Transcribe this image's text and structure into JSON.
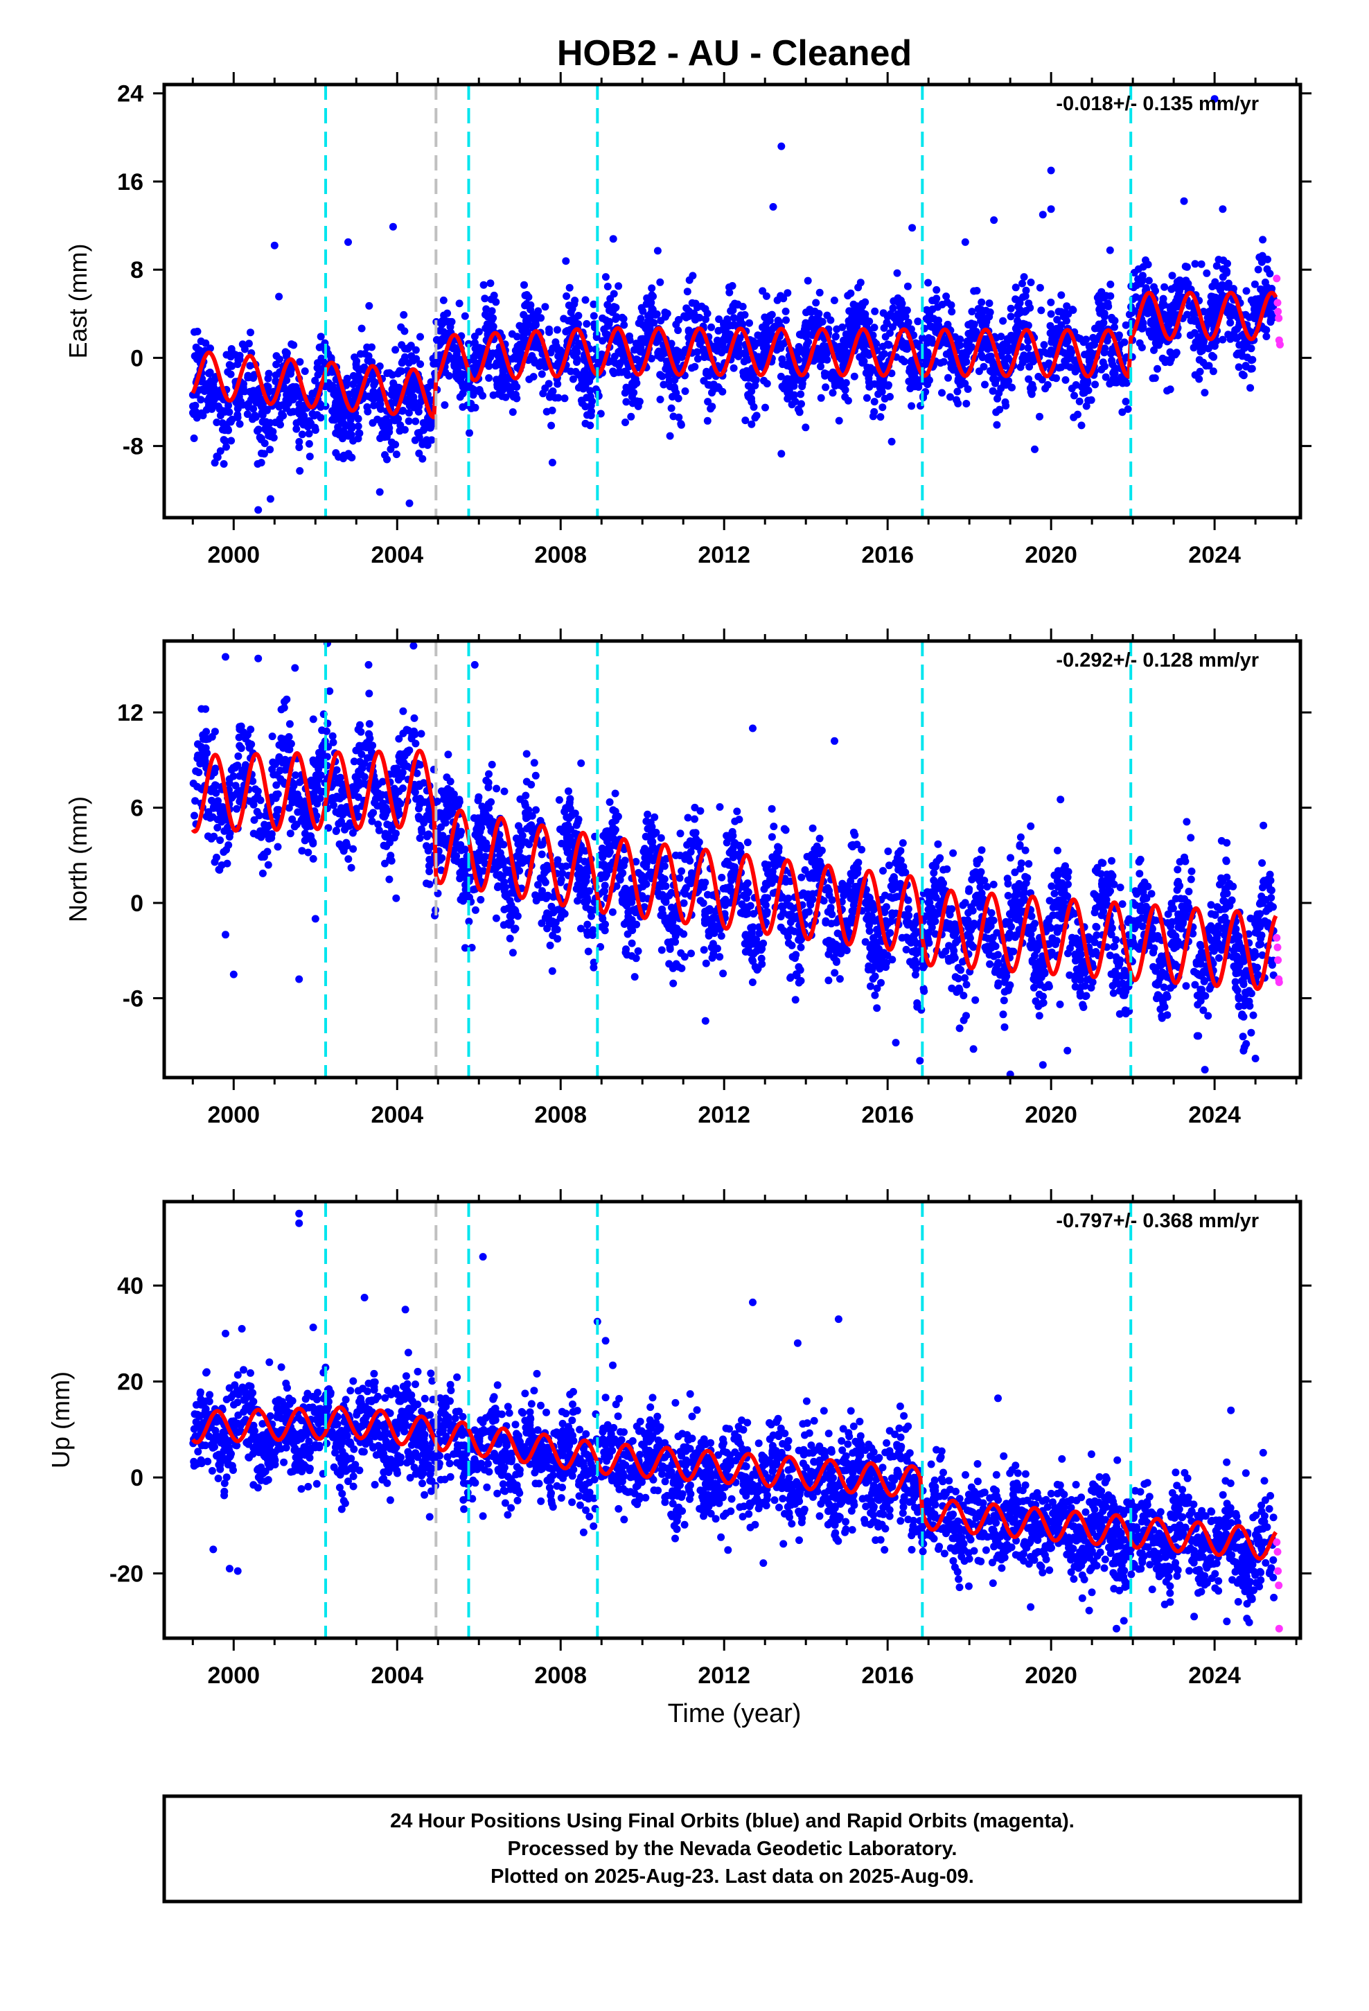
{
  "title": "HOB2  - AU - Cleaned",
  "xlabel": "Time (year)",
  "footer": [
    "24 Hour Positions Using Final Orbits (blue) and Rapid Orbits (magenta).",
    "Processed by the Nevada Geodetic Laboratory.",
    "Plotted on 2025-Aug-23. Last data on 2025-Aug-09."
  ],
  "colors": {
    "final_orbits": "#0000ff",
    "rapid_orbits": "#ff33ff",
    "model": "#ff0000",
    "equipment_change": "#00e5ee",
    "earthquake": "#c0c0c0"
  },
  "chart_data": [
    {
      "type": "scatter",
      "component": "east",
      "ylabel": "East (mm)",
      "rate_label": "-0.018+/- 0.135 mm/yr",
      "xlim": [
        1998.3,
        2026.1
      ],
      "ylim": [
        -14.5,
        24.8
      ],
      "xticks": [
        2000,
        2004,
        2008,
        2012,
        2016,
        2020,
        2024
      ],
      "xtick_labels": [
        "2000",
        "2004",
        "2008",
        "2012",
        "2016",
        "2020",
        "2024"
      ],
      "yticks": [
        -8,
        0,
        8,
        16,
        24
      ],
      "ytick_labels": [
        "-8",
        "0",
        "8",
        "16",
        "24"
      ],
      "equipment_changes": [
        2002.25,
        2005.75,
        2008.9,
        2016.85,
        2021.95
      ],
      "earthquakes": [
        2004.95
      ],
      "series": [
        {
          "name": "Final Orbits (blue)",
          "color": "#0000ff",
          "x_range": [
            1999.0,
            2025.45
          ],
          "trend_knots": [
            [
              1999.0,
              -3.5
            ],
            [
              2004.9,
              -3.6
            ],
            [
              2004.95,
              -0.4
            ],
            [
              2010,
              0.8
            ],
            [
              2021.9,
              0.7
            ],
            [
              2021.95,
              3.8
            ],
            [
              2025.45,
              3.8
            ]
          ],
          "annual_amplitude": 2.0,
          "noise_sd": 2.0,
          "n": 3200,
          "outliers": [
            [
              2013.4,
              19.2
            ],
            [
              2013.2,
              13.7
            ],
            [
              2020.0,
              17.0
            ],
            [
              2020.0,
              13.5
            ],
            [
              2019.8,
              13.0
            ],
            [
              2024.0,
              23.5
            ],
            [
              2024.2,
              13.5
            ],
            [
              2003.9,
              11.9
            ],
            [
              2001.0,
              10.2
            ],
            [
              2002.8,
              10.5
            ],
            [
              2018.6,
              12.5
            ],
            [
              2017.9,
              10.5
            ],
            [
              2016.6,
              11.8
            ],
            [
              2000.6,
              -13.8
            ],
            [
              2000.9,
              -12.8
            ],
            [
              2004.3,
              -13.2
            ],
            [
              2013.4,
              -8.7
            ],
            [
              2007.8,
              -9.5
            ],
            [
              2019.6,
              -8.3
            ],
            [
              2016.1,
              -7.6
            ]
          ]
        },
        {
          "name": "Rapid Orbits (magenta)",
          "color": "#ff33ff",
          "values": [
            [
              2025.52,
              7.2
            ],
            [
              2025.54,
              5.0
            ],
            [
              2025.55,
              4.2
            ],
            [
              2025.57,
              3.6
            ],
            [
              2025.58,
              1.6
            ],
            [
              2025.6,
              1.2
            ]
          ]
        },
        {
          "name": "model",
          "color": "#ff0000",
          "knots": [
            [
              1999.0,
              -1.5
            ],
            [
              2004.9,
              -3.3
            ],
            [
              2004.95,
              -0.1
            ],
            [
              2009.0,
              0.6
            ],
            [
              2021.9,
              0.4
            ],
            [
              2021.95,
              3.8
            ],
            [
              2025.5,
              3.8
            ]
          ],
          "step_offsets": [
            [
              2002.25,
              -1.2
            ]
          ],
          "annual_amplitude": 2.1,
          "phase": 0.15
        }
      ]
    },
    {
      "type": "scatter",
      "component": "north",
      "ylabel": "North (mm)",
      "rate_label": "-0.292+/- 0.128 mm/yr",
      "xlim": [
        1998.3,
        2026.1
      ],
      "ylim": [
        -11.0,
        16.5
      ],
      "xticks": [
        2000,
        2004,
        2008,
        2012,
        2016,
        2020,
        2024
      ],
      "xtick_labels": [
        "2000",
        "2004",
        "2008",
        "2012",
        "2016",
        "2020",
        "2024"
      ],
      "yticks": [
        -6,
        0,
        6,
        12
      ],
      "ytick_labels": [
        "-6",
        "0",
        "6",
        "12"
      ],
      "equipment_changes": [
        2002.25,
        2005.75,
        2008.9,
        2016.85,
        2021.95
      ],
      "earthquakes": [
        2004.95
      ],
      "series": [
        {
          "name": "Final Orbits (blue)",
          "color": "#0000ff",
          "x_range": [
            1999.0,
            2025.45
          ],
          "trend_knots": [
            [
              1999.0,
              6.8
            ],
            [
              2004.9,
              7.1
            ],
            [
              2004.95,
              3.6
            ],
            [
              2010,
              1.0
            ],
            [
              2016.8,
              -1.0
            ],
            [
              2016.85,
              -1.5
            ],
            [
              2025.45,
              -2.7
            ]
          ],
          "annual_amplitude": 2.3,
          "noise_sd": 1.6,
          "n": 3200,
          "outliers": [
            [
              2004.4,
              16.2
            ],
            [
              1999.8,
              15.5
            ],
            [
              2000.6,
              15.4
            ],
            [
              2001.5,
              14.8
            ],
            [
              2003.3,
              15.0
            ],
            [
              2005.9,
              15.0
            ],
            [
              2008.5,
              8.8
            ],
            [
              2012.7,
              11.0
            ],
            [
              2014.7,
              10.2
            ],
            [
              2000.0,
              -4.5
            ],
            [
              2001.6,
              -4.8
            ],
            [
              1999.8,
              -2.0
            ],
            [
              2002.0,
              -1.0
            ],
            [
              2019.0,
              -10.8
            ],
            [
              2019.8,
              -10.2
            ],
            [
              2020.4,
              -9.3
            ],
            [
              2025.0,
              -9.8
            ],
            [
              2016.2,
              -8.8
            ],
            [
              2018.1,
              -9.2
            ]
          ]
        },
        {
          "name": "Rapid Orbits (magenta)",
          "color": "#ff33ff",
          "values": [
            [
              2025.52,
              -2.2
            ],
            [
              2025.54,
              -2.8
            ],
            [
              2025.55,
              -3.6
            ],
            [
              2025.57,
              -4.8
            ],
            [
              2025.58,
              -5.0
            ]
          ]
        },
        {
          "name": "model",
          "color": "#ff0000",
          "knots": [
            [
              1999.0,
              6.9
            ],
            [
              2004.9,
              7.2
            ],
            [
              2004.95,
              3.7
            ],
            [
              2009.0,
              1.8
            ],
            [
              2016.8,
              -0.8
            ],
            [
              2016.85,
              -1.5
            ],
            [
              2025.5,
              -3.1
            ]
          ],
          "annual_amplitude": 2.4,
          "phase": 0.3
        }
      ]
    },
    {
      "type": "scatter",
      "component": "up",
      "ylabel": "Up (mm)",
      "rate_label": "-0.797+/- 0.368 mm/yr",
      "xlim": [
        1998.3,
        2026.1
      ],
      "ylim": [
        -33.5,
        57.5
      ],
      "xticks": [
        2000,
        2004,
        2008,
        2012,
        2016,
        2020,
        2024
      ],
      "xtick_labels": [
        "2000",
        "2004",
        "2008",
        "2012",
        "2016",
        "2020",
        "2024"
      ],
      "yticks": [
        -20,
        0,
        20,
        40
      ],
      "ytick_labels": [
        "-20",
        "0",
        "20",
        "40"
      ],
      "equipment_changes": [
        2002.25,
        2005.75,
        2008.9,
        2016.85,
        2021.95
      ],
      "earthquakes": [
        2004.95
      ],
      "series": [
        {
          "name": "Final Orbits (blue)",
          "color": "#0000ff",
          "x_range": [
            1999.0,
            2025.45
          ],
          "trend_knots": [
            [
              1999.0,
              8.5
            ],
            [
              2003.0,
              10.0
            ],
            [
              2009.0,
              3.5
            ],
            [
              2016.8,
              -1.5
            ],
            [
              2016.85,
              -8.0
            ],
            [
              2025.45,
              -15.0
            ]
          ],
          "annual_amplitude": 3.0,
          "noise_sd": 4.8,
          "n": 3200,
          "outliers": [
            [
              2001.6,
              55.0
            ],
            [
              2001.6,
              53.0
            ],
            [
              2006.1,
              46.0
            ],
            [
              2003.2,
              37.5
            ],
            [
              2004.2,
              35.0
            ],
            [
              2008.9,
              32.5
            ],
            [
              2012.7,
              36.5
            ],
            [
              2014.8,
              33.0
            ],
            [
              2009.1,
              28.5
            ],
            [
              2013.8,
              28.0
            ],
            [
              1999.8,
              30.0
            ],
            [
              2000.2,
              31.0
            ],
            [
              2018.7,
              16.5
            ],
            [
              2024.4,
              14.0
            ],
            [
              1999.5,
              -15.0
            ],
            [
              1999.9,
              -19.0
            ],
            [
              2000.1,
              -19.5
            ],
            [
              2021.6,
              -31.5
            ],
            [
              2024.3,
              -30.0
            ],
            [
              2019.5,
              -27.0
            ],
            [
              2023.5,
              -29.0
            ]
          ]
        },
        {
          "name": "Rapid Orbits (magenta)",
          "color": "#ff33ff",
          "values": [
            [
              2025.52,
              -13.5
            ],
            [
              2025.54,
              -15.5
            ],
            [
              2025.55,
              -19.5
            ],
            [
              2025.57,
              -22.5
            ],
            [
              2025.58,
              -31.5
            ]
          ]
        },
        {
          "name": "model",
          "color": "#ff0000",
          "knots": [
            [
              1999.0,
              10.5
            ],
            [
              2003.0,
              11.5
            ],
            [
              2009.0,
              4.0
            ],
            [
              2016.8,
              -1.0
            ],
            [
              2016.85,
              -7.5
            ],
            [
              2025.5,
              -14.0
            ]
          ],
          "step_offsets": [
            [
              2002.25,
              3.5
            ]
          ],
          "annual_amplitude": 3.2,
          "phase": 0.35
        }
      ]
    }
  ]
}
